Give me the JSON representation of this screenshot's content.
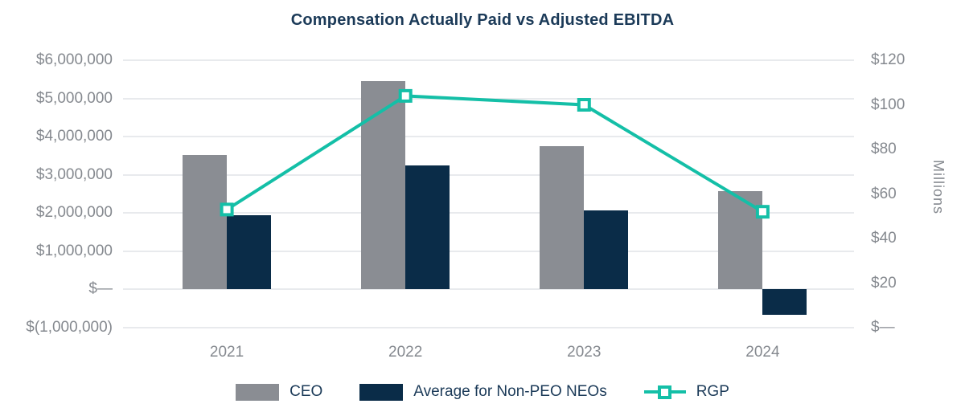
{
  "title": "Compensation Actually Paid vs Adjusted EBITDA",
  "chart_data": {
    "type": "bar",
    "subtype": "combo-bar-line-dual-axis",
    "categories": [
      "2021",
      "2022",
      "2023",
      "2024"
    ],
    "series": [
      {
        "name": "CEO",
        "type": "bar",
        "axis": "left",
        "color": "#8A8D93",
        "values": [
          3520000,
          5450000,
          3760000,
          2570000
        ]
      },
      {
        "name": "Average for Non-PEO NEOs",
        "type": "bar",
        "axis": "left",
        "color": "#0A2C48",
        "values": [
          1940000,
          3250000,
          2060000,
          -670000
        ]
      },
      {
        "name": "RGP",
        "type": "line",
        "axis": "right",
        "color": "#14BFA7",
        "marker": "hollow-square",
        "values": [
          53,
          104,
          100,
          52
        ]
      }
    ],
    "left_axis": {
      "min": -1000000,
      "max": 6000000,
      "tick_labels": [
        "$6,000,000",
        "$5,000,000",
        "$4,000,000",
        "$3,000,000",
        "$2,000,000",
        "$1,000,000",
        "$—",
        "$(1,000,000)"
      ]
    },
    "right_axis": {
      "min": 0,
      "max": 120,
      "title": "Millions",
      "tick_labels": [
        "$120",
        "$100",
        "$80",
        "$60",
        "$40",
        "$20",
        "$—"
      ]
    },
    "xlabel": "",
    "ylabel": "",
    "grid": true,
    "legend_position": "bottom",
    "colors": {
      "title_text": "#1B3A58",
      "legend_text": "#1B3A58",
      "axis_text": "#85898F",
      "gridline": "#E8EAED",
      "background": "#FFFFFF"
    }
  },
  "legend": {
    "items": [
      "CEO",
      "Average for Non-PEO NEOs",
      "RGP"
    ]
  }
}
